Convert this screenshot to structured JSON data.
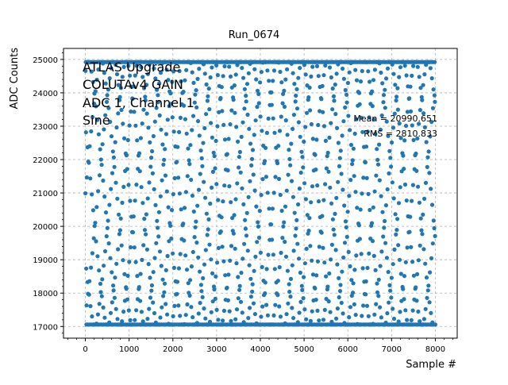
{
  "chart_data": {
    "type": "scatter",
    "title": "Run_0674",
    "xlabel": "Sample #",
    "ylabel": "ADC Counts",
    "xlim": [
      -500,
      8500
    ],
    "ylim": [
      16650,
      25330
    ],
    "xticks": [
      0,
      1000,
      2000,
      3000,
      4000,
      5000,
      6000,
      7000,
      8000
    ],
    "yticks": [
      17000,
      18000,
      19000,
      20000,
      21000,
      22000,
      23000,
      24000,
      25000
    ],
    "grid": true,
    "legend": "none",
    "series": [
      {
        "color": "#1f77b4",
        "marker": "circle",
        "sample_range": [
          0,
          7999
        ],
        "shape": "sine",
        "min": 17060,
        "max": 24920,
        "clip_high": 24920,
        "clip_low": 17060
      }
    ],
    "annotations": {
      "upper_left": [
        "ATLAS Upgrade",
        "COLUTAv4 GAIN",
        "ADC 1, Channel 1",
        "Sine"
      ],
      "mean": "Mean = 20990.651",
      "rms": "RMS = 2810.833"
    }
  }
}
